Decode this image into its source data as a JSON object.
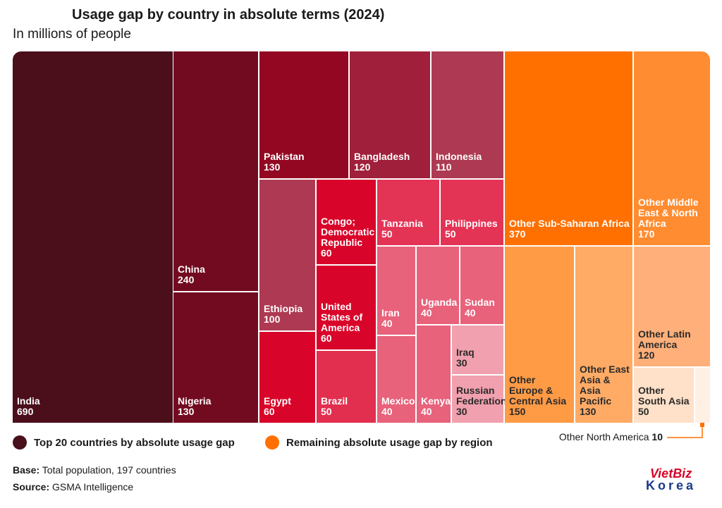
{
  "chart_data": {
    "type": "treemap",
    "title": "Usage gap by country in absolute terms (2024)",
    "subtitle": "In millions of people",
    "legend": [
      {
        "name": "Top 20 countries by absolute usage gap",
        "color": "#4a0f1b"
      },
      {
        "name": "Remaining absolute usage gap by region",
        "color": "#ff7000"
      }
    ],
    "items": [
      {
        "name": "India",
        "value": 690,
        "color": "#4a0f1b",
        "text": "#ffffff"
      },
      {
        "name": "China",
        "value": 240,
        "color": "#730b20",
        "text": "#ffffff"
      },
      {
        "name": "Nigeria",
        "value": 130,
        "color": "#730b20",
        "text": "#ffffff"
      },
      {
        "name": "Pakistan",
        "value": 130,
        "color": "#930722",
        "text": "#ffffff"
      },
      {
        "name": "Bangladesh",
        "value": 120,
        "color": "#a01f3a",
        "text": "#ffffff"
      },
      {
        "name": "Indonesia",
        "value": 110,
        "color": "#ad3a52",
        "text": "#ffffff"
      },
      {
        "name": "Ethiopia",
        "value": 100,
        "color": "#ad3a52",
        "text": "#ffffff"
      },
      {
        "name": "Egypt",
        "value": 60,
        "color": "#d90429",
        "text": "#ffffff"
      },
      {
        "name": "Congo; Democratic Republic",
        "value": 60,
        "color": "#d90429",
        "text": "#ffffff"
      },
      {
        "name": "United States of America",
        "value": 60,
        "color": "#d90429",
        "text": "#ffffff"
      },
      {
        "name": "Brazil",
        "value": 50,
        "color": "#e22f4f",
        "text": "#ffffff"
      },
      {
        "name": "Tanzania",
        "value": 50,
        "color": "#e43456",
        "text": "#ffffff"
      },
      {
        "name": "Philippines",
        "value": 50,
        "color": "#e43456",
        "text": "#ffffff"
      },
      {
        "name": "Iran",
        "value": 40,
        "color": "#e8627b",
        "text": "#ffffff"
      },
      {
        "name": "Mexico",
        "value": 40,
        "color": "#e8627b",
        "text": "#ffffff"
      },
      {
        "name": "Uganda",
        "value": 40,
        "color": "#e8627b",
        "text": "#ffffff"
      },
      {
        "name": "Sudan",
        "value": 40,
        "color": "#e8627b",
        "text": "#ffffff"
      },
      {
        "name": "Kenya",
        "value": 40,
        "color": "#e8627b",
        "text": "#ffffff"
      },
      {
        "name": "Iraq",
        "value": 30,
        "color": "#f0a0ae",
        "text": "#2a2a2a"
      },
      {
        "name": "Russian Federation",
        "value": 30,
        "color": "#f0a0ae",
        "text": "#2a2a2a"
      },
      {
        "name": "Other Sub-Saharan Africa",
        "value": 370,
        "color": "#ff7000",
        "text": "#ffffff"
      },
      {
        "name": "Other Middle East & North Africa",
        "value": 170,
        "color": "#ff8c30",
        "text": "#ffffff"
      },
      {
        "name": "Other Europe & Central Asia",
        "value": 150,
        "color": "#ff9a45",
        "text": "#2a2a2a"
      },
      {
        "name": "Other East Asia & Asia Pacific",
        "value": 130,
        "color": "#ffab66",
        "text": "#2a2a2a"
      },
      {
        "name": "Other Latin America",
        "value": 120,
        "color": "#ffb07a",
        "text": "#2a2a2a"
      },
      {
        "name": "Other South Asia",
        "value": 50,
        "color": "#ffe0c8",
        "text": "#2a2a2a"
      },
      {
        "name": "Other North America",
        "value": 10,
        "color": "#fff0e4",
        "text": "#2a2a2a"
      }
    ],
    "base_label": "Base:",
    "base": "Total population, 197 countries",
    "source_label": "Source:",
    "source": "GSMA Intelligence"
  },
  "logo": {
    "top": "VietBiz",
    "bottom": "Korea"
  }
}
